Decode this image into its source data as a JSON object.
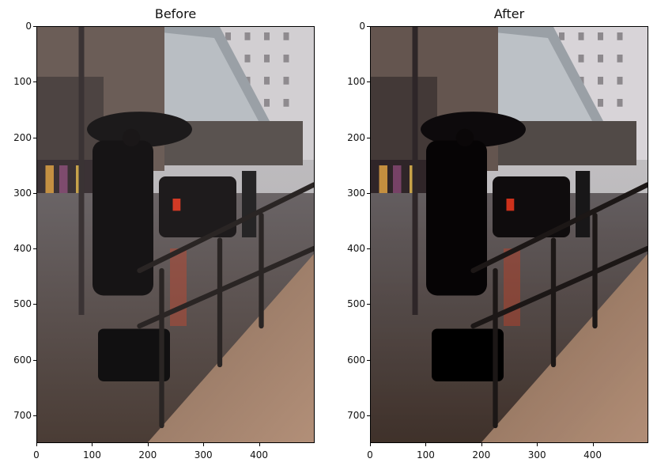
{
  "panels": [
    {
      "title": "Before",
      "image_description": "man-with-umbrella-rainy-street-photo",
      "filter": "none",
      "y_ticks": [
        "0",
        "100",
        "200",
        "300",
        "400",
        "500",
        "600",
        "700"
      ],
      "x_ticks": [
        "0",
        "100",
        "200",
        "300",
        "400"
      ]
    },
    {
      "title": "After",
      "image_description": "man-with-umbrella-rainy-street-photo-enhanced",
      "filter": "contrast",
      "y_ticks": [
        "0",
        "100",
        "200",
        "300",
        "400",
        "500",
        "600",
        "700"
      ],
      "x_ticks": [
        "0",
        "100",
        "200",
        "300",
        "400"
      ]
    }
  ],
  "image_extent": {
    "x": [
      0,
      500
    ],
    "y": [
      0,
      750
    ]
  }
}
